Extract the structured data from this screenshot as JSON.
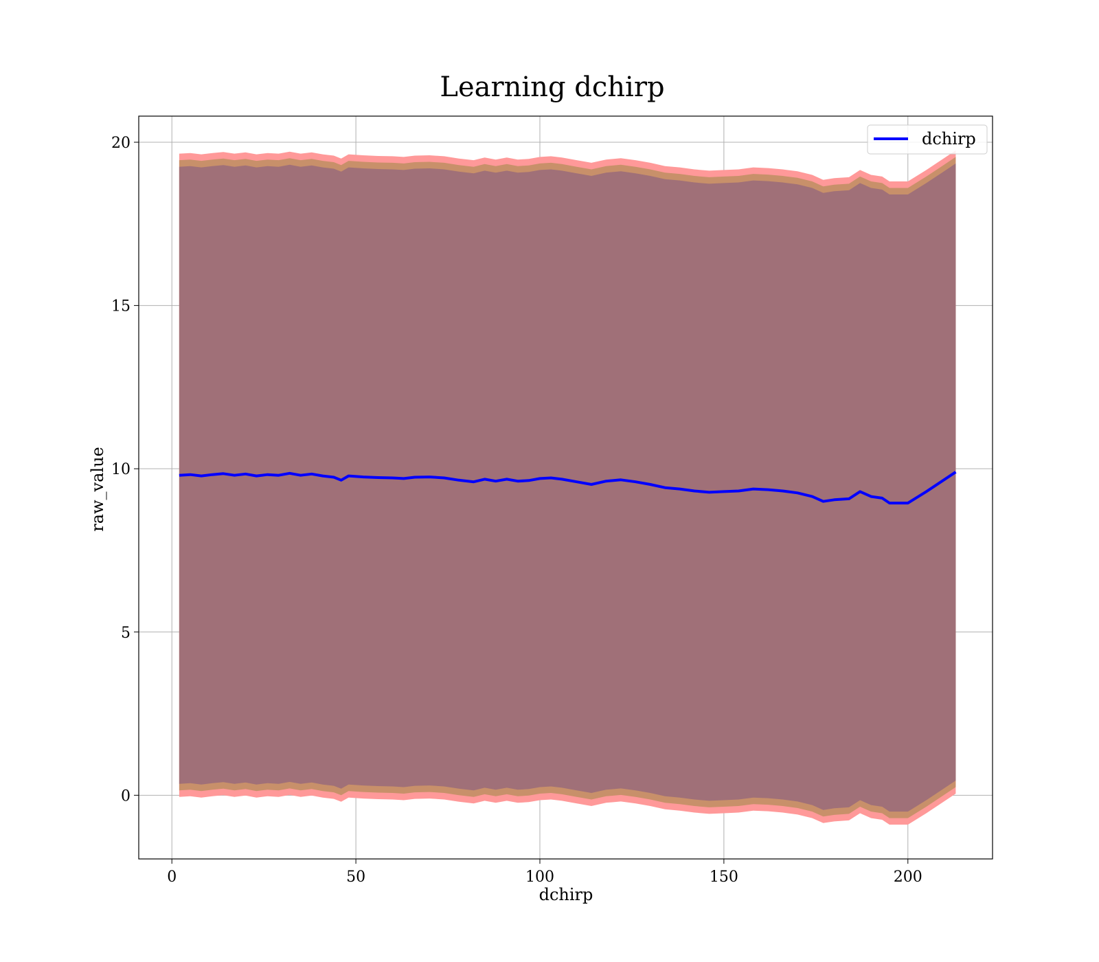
{
  "chart_data": {
    "type": "line",
    "title": "Learning dchirp",
    "xlabel": "dchirp",
    "ylabel": "raw_value",
    "xlim": [
      -9,
      223
    ],
    "ylim": [
      -1.95,
      20.8
    ],
    "xticks": [
      0,
      50,
      100,
      150,
      200
    ],
    "yticks": [
      0,
      5,
      10,
      15,
      20
    ],
    "grid": true,
    "legend": {
      "position": "top-right",
      "entries": [
        "dchirp"
      ]
    },
    "colors": {
      "line": "#0000ff",
      "band_outer": "#ff9999",
      "band_middle": "#c8906a",
      "band_inner": "#a07078",
      "grid": "#b0b0b0"
    },
    "band_offsets": {
      "outer": 9.85,
      "middle": 9.65,
      "inner": 9.45
    },
    "series": [
      {
        "name": "dchirp",
        "x": [
          2,
          5,
          8,
          11,
          14,
          17,
          20,
          23,
          26,
          29,
          32,
          35,
          38,
          41,
          44,
          46,
          48,
          52,
          56,
          60,
          63,
          66,
          70,
          74,
          78,
          82,
          85,
          88,
          91,
          94,
          97,
          100,
          103,
          106,
          110,
          114,
          118,
          122,
          126,
          130,
          134,
          138,
          142,
          146,
          150,
          154,
          158,
          162,
          166,
          170,
          174,
          177,
          180,
          184,
          187,
          190,
          193,
          195,
          200,
          205,
          209,
          213
        ],
        "y": [
          9.8,
          9.82,
          9.78,
          9.82,
          9.85,
          9.8,
          9.84,
          9.78,
          9.82,
          9.8,
          9.86,
          9.8,
          9.84,
          9.78,
          9.74,
          9.65,
          9.78,
          9.75,
          9.73,
          9.72,
          9.7,
          9.74,
          9.75,
          9.72,
          9.65,
          9.6,
          9.68,
          9.62,
          9.68,
          9.62,
          9.64,
          9.7,
          9.72,
          9.68,
          9.6,
          9.52,
          9.62,
          9.66,
          9.6,
          9.52,
          9.42,
          9.38,
          9.32,
          9.28,
          9.3,
          9.32,
          9.38,
          9.36,
          9.32,
          9.26,
          9.15,
          9.0,
          9.05,
          9.08,
          9.3,
          9.15,
          9.1,
          8.95,
          8.95,
          9.3,
          9.6,
          9.9
        ]
      }
    ]
  }
}
